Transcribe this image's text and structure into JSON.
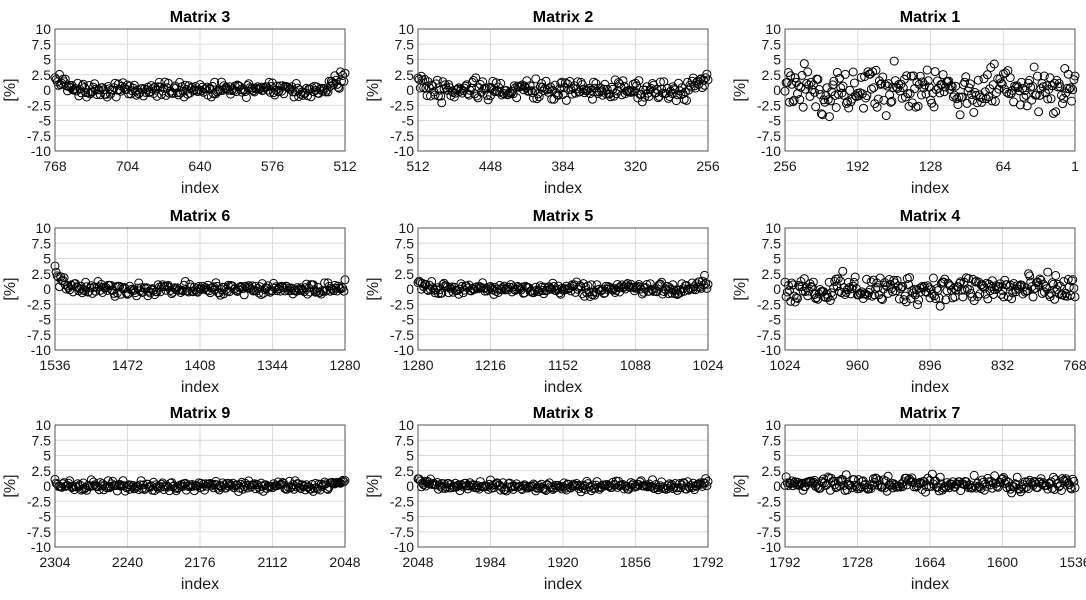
{
  "chart_data": [
    {
      "type": "scatter",
      "title": "Matrix 3",
      "xlabel": "index",
      "ylabel": "[%]",
      "xlim": [
        768,
        512
      ],
      "ylim": [
        -10,
        10
      ],
      "grid": true,
      "xaxis_reversed": true,
      "xticks": [
        "768",
        "704",
        "640",
        "576",
        "512"
      ],
      "yticks": [
        "10",
        "7.5",
        "5",
        "2.5",
        "0",
        "-2.5",
        "-5",
        "-7.5",
        "-10"
      ],
      "pattern": {
        "start": 768,
        "end": 512,
        "base": 0.0,
        "amp": 1.0,
        "seed": 3,
        "edge_left": 2.5,
        "edge_right": 3.5
      }
    },
    {
      "type": "scatter",
      "title": "Matrix 2",
      "xlabel": "index",
      "ylabel": "[%]",
      "xlim": [
        512,
        256
      ],
      "ylim": [
        -10,
        10
      ],
      "grid": true,
      "xaxis_reversed": true,
      "xticks": [
        "512",
        "448",
        "384",
        "320",
        "256"
      ],
      "yticks": [
        "10",
        "7.5",
        "5",
        "2.5",
        "0",
        "-2.5",
        "-5",
        "-7.5",
        "-10"
      ],
      "pattern": {
        "start": 512,
        "end": 256,
        "base": 0.0,
        "amp": 1.4,
        "seed": 2,
        "edge_left": 2.5,
        "edge_right": 2.0
      }
    },
    {
      "type": "scatter",
      "title": "Matrix 1",
      "xlabel": "index",
      "ylabel": "[%]",
      "xlim": [
        256,
        1
      ],
      "ylim": [
        -10,
        10
      ],
      "grid": true,
      "xaxis_reversed": true,
      "xticks": [
        "256",
        "192",
        "128",
        "64",
        "1"
      ],
      "yticks": [
        "10",
        "7.5",
        "5",
        "2.5",
        "0",
        "-2.5",
        "-5",
        "-7.5",
        "-10"
      ],
      "pattern": {
        "start": 256,
        "end": 1,
        "base": 0.0,
        "amp": 3.0,
        "seed": 1,
        "edge_left": 0,
        "edge_right": 0
      }
    },
    {
      "type": "scatter",
      "title": "Matrix 6",
      "xlabel": "index",
      "ylabel": "[%]",
      "xlim": [
        1536,
        1280
      ],
      "ylim": [
        -10,
        10
      ],
      "grid": true,
      "xaxis_reversed": true,
      "xticks": [
        "1536",
        "1472",
        "1408",
        "1344",
        "1280"
      ],
      "yticks": [
        "10",
        "7.5",
        "5",
        "2.5",
        "0",
        "-2.5",
        "-5",
        "-7.5",
        "-10"
      ],
      "pattern": {
        "start": 1536,
        "end": 1280,
        "base": 0.0,
        "amp": 0.9,
        "seed": 6,
        "edge_left": 3.0,
        "edge_right": 1.0
      }
    },
    {
      "type": "scatter",
      "title": "Matrix 5",
      "xlabel": "index",
      "ylabel": "[%]",
      "xlim": [
        1280,
        1024
      ],
      "ylim": [
        -10,
        10
      ],
      "grid": true,
      "xaxis_reversed": true,
      "xticks": [
        "1280",
        "1216",
        "1152",
        "1088",
        "1024"
      ],
      "yticks": [
        "10",
        "7.5",
        "5",
        "2.5",
        "0",
        "-2.5",
        "-5",
        "-7.5",
        "-10"
      ],
      "pattern": {
        "start": 1280,
        "end": 1024,
        "base": 0.0,
        "amp": 0.8,
        "seed": 5,
        "edge_left": 1.0,
        "edge_right": 1.8
      }
    },
    {
      "type": "scatter",
      "title": "Matrix 4",
      "xlabel": "index",
      "ylabel": "[%]",
      "xlim": [
        1024,
        768
      ],
      "ylim": [
        -10,
        10
      ],
      "grid": true,
      "xaxis_reversed": true,
      "xticks": [
        "1024",
        "960",
        "896",
        "832",
        "768"
      ],
      "yticks": [
        "10",
        "7.5",
        "5",
        "2.5",
        "0",
        "-2.5",
        "-5",
        "-7.5",
        "-10"
      ],
      "pattern": {
        "start": 1024,
        "end": 768,
        "base": 0.0,
        "amp": 2.0,
        "seed": 4,
        "edge_left": 0,
        "edge_right": 0
      }
    },
    {
      "type": "scatter",
      "title": "Matrix 9",
      "xlabel": "index",
      "ylabel": "[%]",
      "xlim": [
        2304,
        2048
      ],
      "ylim": [
        -10,
        10
      ],
      "grid": true,
      "xaxis_reversed": true,
      "xticks": [
        "2304",
        "2240",
        "2176",
        "2112",
        "2048"
      ],
      "yticks": [
        "10",
        "7.5",
        "5",
        "2.5",
        "0",
        "-2.5",
        "-5",
        "-7.5",
        "-10"
      ],
      "pattern": {
        "start": 2304,
        "end": 2048,
        "base": 0.0,
        "amp": 0.7,
        "seed": 9,
        "edge_left": 1.0,
        "edge_right": 1.2
      }
    },
    {
      "type": "scatter",
      "title": "Matrix 8",
      "xlabel": "index",
      "ylabel": "[%]",
      "xlim": [
        2048,
        1792
      ],
      "ylim": [
        -10,
        10
      ],
      "grid": true,
      "xaxis_reversed": true,
      "xticks": [
        "2048",
        "1984",
        "1920",
        "1856",
        "1792"
      ],
      "yticks": [
        "10",
        "7.5",
        "5",
        "2.5",
        "0",
        "-2.5",
        "-5",
        "-7.5",
        "-10"
      ],
      "pattern": {
        "start": 2048,
        "end": 1792,
        "base": 0.0,
        "amp": 0.7,
        "seed": 8,
        "edge_left": 0.8,
        "edge_right": 0.6
      }
    },
    {
      "type": "scatter",
      "title": "Matrix 7",
      "xlabel": "index",
      "ylabel": "[%]",
      "xlim": [
        1792,
        1536
      ],
      "ylim": [
        -10,
        10
      ],
      "grid": true,
      "xaxis_reversed": true,
      "xticks": [
        "1792",
        "1728",
        "1664",
        "1600",
        "1536"
      ],
      "yticks": [
        "10",
        "7.5",
        "5",
        "2.5",
        "0",
        "-2.5",
        "-5",
        "-7.5",
        "-10"
      ],
      "pattern": {
        "start": 1792,
        "end": 1536,
        "base": 0.3,
        "amp": 1.0,
        "seed": 7,
        "edge_left": 0,
        "edge_right": 0
      }
    }
  ]
}
